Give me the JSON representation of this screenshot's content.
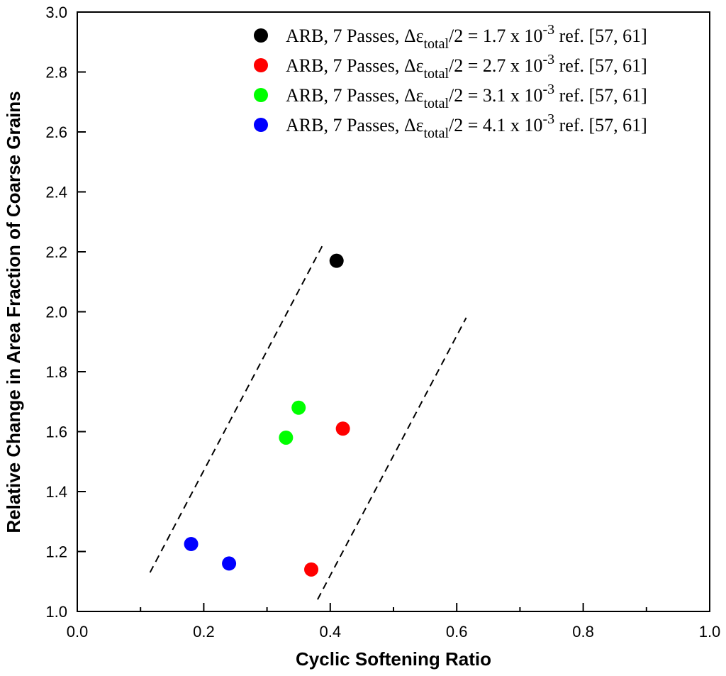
{
  "chart_data": {
    "type": "scatter",
    "title": "",
    "xlabel": "Cyclic Softening Ratio",
    "ylabel": "Relative Change in Area Fraction of Coarse Grains",
    "xlim": [
      0.0,
      1.0
    ],
    "ylim": [
      1.0,
      3.0
    ],
    "x_ticks": [
      "0.0",
      "0.2",
      "0.4",
      "0.6",
      "0.8",
      "1.0"
    ],
    "y_ticks": [
      "1.0",
      "1.2",
      "1.4",
      "1.6",
      "1.8",
      "2.0",
      "2.2",
      "2.4",
      "2.6",
      "2.8",
      "3.0"
    ],
    "legend_position": "top-right",
    "series": [
      {
        "name": "ARB, 7 Passes, Δεtotal/2 = 1.7 x 10-3 ref. [57, 61]",
        "label_prefix": "ARB, 7 Passes, Δε",
        "label_sub": "total",
        "label_mid": "/2 = 1.7 x 10",
        "label_sup": "-3",
        "label_suffix": " ref. [57, 61]",
        "color": "#000000",
        "points": [
          {
            "x": 0.41,
            "y": 2.17
          }
        ]
      },
      {
        "name": "ARB, 7 Passes, Δεtotal/2 = 2.7 x 10-3 ref. [57, 61]",
        "label_prefix": "ARB, 7 Passes, Δε",
        "label_sub": "total",
        "label_mid": "/2 = 2.7 x 10",
        "label_sup": "-3",
        "label_suffix": " ref. [57, 61]",
        "color": "#ff0000",
        "points": [
          {
            "x": 0.42,
            "y": 1.61
          },
          {
            "x": 0.37,
            "y": 1.14
          }
        ]
      },
      {
        "name": "ARB, 7 Passes, Δεtotal/2 = 3.1 x 10-3 ref. [57, 61]",
        "label_prefix": "ARB, 7 Passes, Δε",
        "label_sub": "total",
        "label_mid": "/2 = 3.1 x 10",
        "label_sup": "-3",
        "label_suffix": " ref. [57, 61]",
        "color": "#00ff00",
        "points": [
          {
            "x": 0.35,
            "y": 1.68
          },
          {
            "x": 0.33,
            "y": 1.58
          }
        ]
      },
      {
        "name": "ARB, 7 Passes, Δεtotal/2 = 4.1 x 10-3 ref. [57, 61]",
        "label_prefix": "ARB, 7 Passes, Δε",
        "label_sub": "total",
        "label_mid": "/2 = 4.1 x 10",
        "label_sup": "-3",
        "label_suffix": " ref. [57, 61]",
        "color": "#0000ff",
        "points": [
          {
            "x": 0.18,
            "y": 1.225
          },
          {
            "x": 0.24,
            "y": 1.16
          }
        ]
      }
    ],
    "bound_lines": [
      {
        "name": "upper-bound",
        "x1": 0.115,
        "y1": 1.13,
        "x2": 0.39,
        "y2": 2.23
      },
      {
        "name": "lower-bound",
        "x1": 0.38,
        "y1": 1.04,
        "x2": 0.615,
        "y2": 1.98
      }
    ]
  }
}
